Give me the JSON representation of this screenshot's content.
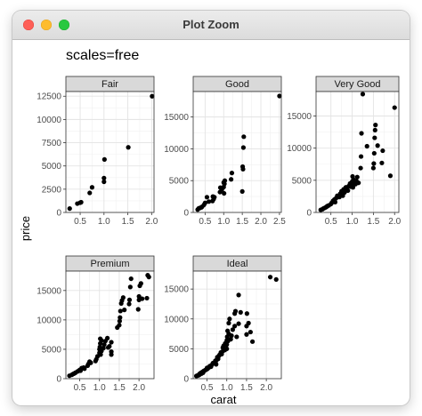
{
  "window": {
    "title": "Plot Zoom"
  },
  "chart_data": {
    "type": "scatter",
    "title": "scales=free",
    "xlabel": "carat",
    "ylabel": "price",
    "facet_scales": "free",
    "grid": true,
    "panels": [
      {
        "name": "Fair",
        "xlim": [
          0.2,
          2.05
        ],
        "ylim": [
          0,
          13000
        ],
        "xticks": [
          0.5,
          1.0,
          1.5,
          2.0
        ],
        "xtick_labels": [
          "0.5",
          "1.0",
          "1.5",
          "2.0"
        ],
        "yticks": [
          0,
          2500,
          5000,
          7500,
          10000,
          12500
        ],
        "ytick_labels": [
          "0",
          "2500",
          "5000",
          "7500",
          "10000",
          "12500"
        ],
        "points": [
          [
            0.28,
            420
          ],
          [
            0.44,
            950
          ],
          [
            0.5,
            1050
          ],
          [
            0.52,
            1100
          ],
          [
            0.7,
            2100
          ],
          [
            0.75,
            2700
          ],
          [
            1.0,
            3300
          ],
          [
            1.0,
            3700
          ],
          [
            1.01,
            5700
          ],
          [
            1.51,
            7000
          ],
          [
            2.01,
            12500
          ]
        ]
      },
      {
        "name": "Good",
        "xlim": [
          0.18,
          2.55
        ],
        "ylim": [
          0,
          19000
        ],
        "xticks": [
          0.5,
          1.0,
          1.5,
          2.0,
          2.5
        ],
        "xtick_labels": [
          "0.5",
          "1.0",
          "1.5",
          "2.0",
          "2.5"
        ],
        "yticks": [
          0,
          5000,
          10000,
          15000
        ],
        "ytick_labels": [
          "0",
          "5000",
          "10000",
          "15000"
        ],
        "points": [
          [
            0.3,
            450
          ],
          [
            0.33,
            650
          ],
          [
            0.36,
            700
          ],
          [
            0.4,
            800
          ],
          [
            0.42,
            900
          ],
          [
            0.47,
            1200
          ],
          [
            0.5,
            1500
          ],
          [
            0.55,
            2400
          ],
          [
            0.6,
            1700
          ],
          [
            0.7,
            1800
          ],
          [
            0.71,
            2500
          ],
          [
            0.73,
            2100
          ],
          [
            0.75,
            2400
          ],
          [
            0.9,
            3200
          ],
          [
            0.91,
            3900
          ],
          [
            0.95,
            3600
          ],
          [
            1.0,
            4000
          ],
          [
            1.0,
            4700
          ],
          [
            1.01,
            3000
          ],
          [
            1.02,
            4500
          ],
          [
            1.03,
            5000
          ],
          [
            1.2,
            5200
          ],
          [
            1.22,
            6200
          ],
          [
            1.5,
            3300
          ],
          [
            1.51,
            7200
          ],
          [
            1.52,
            6800
          ],
          [
            1.53,
            10200
          ],
          [
            1.54,
            11900
          ],
          [
            2.5,
            18300
          ]
        ]
      },
      {
        "name": "Very Good",
        "xlim": [
          0.15,
          2.1
        ],
        "ylim": [
          0,
          18800
        ],
        "xticks": [
          0.5,
          1.0,
          1.5,
          2.0
        ],
        "xtick_labels": [
          "0.5",
          "1.0",
          "1.5",
          "2.0"
        ],
        "yticks": [
          0,
          5000,
          10000,
          15000
        ],
        "ytick_labels": [
          "0",
          "5000",
          "10000",
          "15000"
        ],
        "points": [
          [
            0.26,
            400
          ],
          [
            0.3,
            500
          ],
          [
            0.32,
            600
          ],
          [
            0.35,
            700
          ],
          [
            0.38,
            800
          ],
          [
            0.4,
            900
          ],
          [
            0.42,
            1000
          ],
          [
            0.45,
            1100
          ],
          [
            0.5,
            1300
          ],
          [
            0.52,
            1500
          ],
          [
            0.55,
            1800
          ],
          [
            0.58,
            2000
          ],
          [
            0.6,
            1600
          ],
          [
            0.62,
            2200
          ],
          [
            0.65,
            2600
          ],
          [
            0.7,
            2400
          ],
          [
            0.72,
            2900
          ],
          [
            0.75,
            3300
          ],
          [
            0.78,
            2600
          ],
          [
            0.8,
            3600
          ],
          [
            0.82,
            3100
          ],
          [
            0.85,
            3900
          ],
          [
            0.88,
            3500
          ],
          [
            0.9,
            3400
          ],
          [
            0.92,
            4100
          ],
          [
            0.95,
            4500
          ],
          [
            0.97,
            4000
          ],
          [
            1.0,
            4200
          ],
          [
            1.0,
            4800
          ],
          [
            1.01,
            5600
          ],
          [
            1.02,
            3900
          ],
          [
            1.03,
            5100
          ],
          [
            1.05,
            4700
          ],
          [
            1.08,
            4400
          ],
          [
            1.1,
            4900
          ],
          [
            1.12,
            5500
          ],
          [
            1.15,
            4600
          ],
          [
            1.2,
            6900
          ],
          [
            1.21,
            8700
          ],
          [
            1.22,
            12300
          ],
          [
            1.25,
            18400
          ],
          [
            1.35,
            10300
          ],
          [
            1.5,
            6900
          ],
          [
            1.51,
            7600
          ],
          [
            1.52,
            9200
          ],
          [
            1.53,
            11600
          ],
          [
            1.54,
            12800
          ],
          [
            1.55,
            13600
          ],
          [
            1.6,
            10400
          ],
          [
            1.7,
            7700
          ],
          [
            1.72,
            9600
          ],
          [
            1.9,
            5700
          ],
          [
            2.0,
            16300
          ]
        ]
      },
      {
        "name": "Premium",
        "xlim": [
          0.15,
          2.38
        ],
        "ylim": [
          0,
          18300
        ],
        "xticks": [
          0.5,
          1.0,
          1.5,
          2.0
        ],
        "xtick_labels": [
          "0.5",
          "1.0",
          "1.5",
          "2.0"
        ],
        "yticks": [
          0,
          5000,
          10000,
          15000
        ],
        "ytick_labels": [
          "0",
          "5000",
          "10000",
          "15000"
        ],
        "points": [
          [
            0.24,
            500
          ],
          [
            0.3,
            650
          ],
          [
            0.32,
            750
          ],
          [
            0.35,
            850
          ],
          [
            0.38,
            950
          ],
          [
            0.4,
            1050
          ],
          [
            0.45,
            1250
          ],
          [
            0.5,
            1500
          ],
          [
            0.52,
            1350
          ],
          [
            0.55,
            1800
          ],
          [
            0.6,
            1900
          ],
          [
            0.62,
            1700
          ],
          [
            0.7,
            2200
          ],
          [
            0.72,
            2500
          ],
          [
            0.75,
            2900
          ],
          [
            0.78,
            2700
          ],
          [
            0.9,
            3000
          ],
          [
            0.92,
            3300
          ],
          [
            0.95,
            3800
          ],
          [
            1.0,
            4400
          ],
          [
            1.0,
            5000
          ],
          [
            1.01,
            5400
          ],
          [
            1.02,
            6000
          ],
          [
            1.02,
            6800
          ],
          [
            1.03,
            4100
          ],
          [
            1.05,
            4700
          ],
          [
            1.05,
            6500
          ],
          [
            1.1,
            5200
          ],
          [
            1.12,
            5800
          ],
          [
            1.15,
            6400
          ],
          [
            1.2,
            6900
          ],
          [
            1.22,
            5300
          ],
          [
            1.25,
            5500
          ],
          [
            1.3,
            4100
          ],
          [
            1.3,
            6200
          ],
          [
            1.3,
            4600
          ],
          [
            1.45,
            8700
          ],
          [
            1.5,
            9100
          ],
          [
            1.51,
            9800
          ],
          [
            1.52,
            10400
          ],
          [
            1.53,
            11500
          ],
          [
            1.55,
            12800
          ],
          [
            1.57,
            13300
          ],
          [
            1.6,
            13800
          ],
          [
            1.63,
            11700
          ],
          [
            1.75,
            12700
          ],
          [
            1.76,
            13400
          ],
          [
            1.78,
            15600
          ],
          [
            1.8,
            17000
          ],
          [
            1.98,
            11800
          ],
          [
            2.0,
            13400
          ],
          [
            2.0,
            14000
          ],
          [
            2.02,
            15800
          ],
          [
            2.05,
            16200
          ],
          [
            2.08,
            13600
          ],
          [
            2.2,
            13700
          ],
          [
            2.22,
            17600
          ],
          [
            2.25,
            17300
          ]
        ]
      },
      {
        "name": "Ideal",
        "xlim": [
          0.15,
          2.38
        ],
        "ylim": [
          0,
          18000
        ],
        "xticks": [
          0.5,
          1.0,
          1.5,
          2.0
        ],
        "xtick_labels": [
          "0.5",
          "1.0",
          "1.5",
          "2.0"
        ],
        "yticks": [
          0,
          5000,
          10000,
          15000
        ],
        "ytick_labels": [
          "0",
          "5000",
          "10000",
          "15000"
        ],
        "points": [
          [
            0.23,
            450
          ],
          [
            0.25,
            500
          ],
          [
            0.28,
            560
          ],
          [
            0.3,
            620
          ],
          [
            0.3,
            700
          ],
          [
            0.31,
            800
          ],
          [
            0.32,
            720
          ],
          [
            0.33,
            900
          ],
          [
            0.35,
            1000
          ],
          [
            0.36,
            850
          ],
          [
            0.38,
            1100
          ],
          [
            0.4,
            1000
          ],
          [
            0.4,
            1200
          ],
          [
            0.42,
            1300
          ],
          [
            0.45,
            1400
          ],
          [
            0.47,
            1500
          ],
          [
            0.5,
            1600
          ],
          [
            0.5,
            1800
          ],
          [
            0.52,
            1700
          ],
          [
            0.55,
            1900
          ],
          [
            0.57,
            2100
          ],
          [
            0.6,
            2000
          ],
          [
            0.62,
            2300
          ],
          [
            0.65,
            2600
          ],
          [
            0.7,
            2700
          ],
          [
            0.71,
            3000
          ],
          [
            0.72,
            2900
          ],
          [
            0.73,
            2400
          ],
          [
            0.75,
            3200
          ],
          [
            0.76,
            3600
          ],
          [
            0.78,
            3300
          ],
          [
            0.8,
            3800
          ],
          [
            0.82,
            4000
          ],
          [
            0.85,
            4400
          ],
          [
            0.87,
            4100
          ],
          [
            0.9,
            4600
          ],
          [
            0.9,
            5200
          ],
          [
            0.92,
            5500
          ],
          [
            0.95,
            4800
          ],
          [
            0.96,
            5900
          ],
          [
            1.0,
            5000
          ],
          [
            1.0,
            5700
          ],
          [
            1.0,
            6400
          ],
          [
            1.01,
            7000
          ],
          [
            1.02,
            8000
          ],
          [
            1.03,
            6300
          ],
          [
            1.05,
            7500
          ],
          [
            1.05,
            9300
          ],
          [
            1.07,
            10000
          ],
          [
            1.1,
            6600
          ],
          [
            1.12,
            7200
          ],
          [
            1.15,
            8200
          ],
          [
            1.2,
            8800
          ],
          [
            1.2,
            10900
          ],
          [
            1.22,
            11300
          ],
          [
            1.25,
            7000
          ],
          [
            1.3,
            9200
          ],
          [
            1.3,
            14000
          ],
          [
            1.35,
            11100
          ],
          [
            1.5,
            7400
          ],
          [
            1.5,
            8800
          ],
          [
            1.51,
            10900
          ],
          [
            1.55,
            9300
          ],
          [
            1.6,
            7800
          ],
          [
            1.65,
            6200
          ],
          [
            2.1,
            17000
          ],
          [
            2.25,
            16600
          ]
        ]
      }
    ]
  }
}
